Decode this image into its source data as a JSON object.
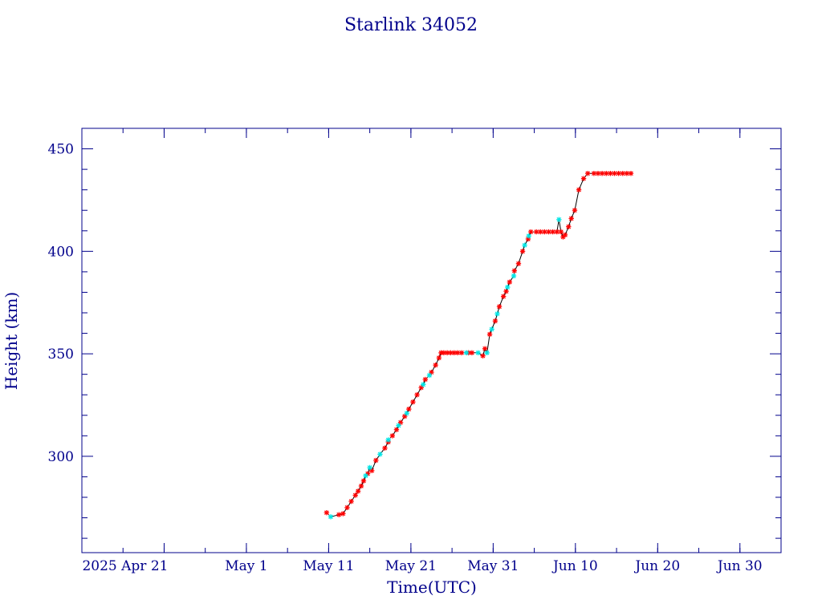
{
  "chart_data": {
    "type": "scatter",
    "title": "Starlink 34052",
    "xlabel": "Time(UTC)",
    "ylabel": "Height (km)",
    "x_tick_labels": [
      "2025 Apr 21",
      "May  1",
      "May 11",
      "May 21",
      "May 31",
      "Jun 10",
      "Jun 20",
      "Jun 30"
    ],
    "x_ticks": [
      "2025-04-21",
      "2025-05-01",
      "2025-05-11",
      "2025-05-21",
      "2025-05-31",
      "2025-06-10",
      "2025-06-20",
      "2025-06-30"
    ],
    "xlim": [
      "2025-04-11",
      "2025-07-05"
    ],
    "y_ticks": [
      300,
      350,
      400,
      450
    ],
    "ylim": [
      253,
      460
    ],
    "grid": false,
    "colors": {
      "axis": "#00008b",
      "text": "#00008b",
      "line": "#000000",
      "marker_primary": "#ff0000",
      "marker_secondary": "#00e5e5"
    },
    "series": [
      {
        "marker": "red-asterisk",
        "points": [
          [
            "2025-05-10 18:00",
            272.5
          ],
          [
            "2025-05-12 06:00",
            271.5
          ],
          [
            "2025-05-12 18:00",
            272
          ],
          [
            "2025-05-13 06:00",
            275
          ],
          [
            "2025-05-13 18:00",
            278
          ],
          [
            "2025-05-14 06:00",
            281
          ],
          [
            "2025-05-14 14:00",
            283
          ],
          [
            "2025-05-14 23:00",
            285.5
          ],
          [
            "2025-05-15 06:00",
            288
          ],
          [
            "2025-05-15 18:00",
            291.5
          ],
          [
            "2025-05-16 06:00",
            293
          ],
          [
            "2025-05-16 18:00",
            298
          ],
          [
            "2025-05-17 20:00",
            304
          ],
          [
            "2025-05-18 06:00",
            307
          ],
          [
            "2025-05-18 18:00",
            310
          ],
          [
            "2025-05-19 06:00",
            313
          ],
          [
            "2025-05-19 18:00",
            316.5
          ],
          [
            "2025-05-20 06:00",
            319.5
          ],
          [
            "2025-05-20 18:00",
            323
          ],
          [
            "2025-05-21 06:00",
            326.5
          ],
          [
            "2025-05-21 18:00",
            330
          ],
          [
            "2025-05-22 06:00",
            333.5
          ],
          [
            "2025-05-22 18:00",
            337.5
          ],
          [
            "2025-05-23 12:00",
            341
          ],
          [
            "2025-05-24 00:00",
            344.5
          ],
          [
            "2025-05-24 10:00",
            348
          ],
          [
            "2025-05-24 16:00",
            350.5
          ],
          [
            "2025-05-25 00:00",
            350.5
          ],
          [
            "2025-05-25 10:00",
            350.5
          ],
          [
            "2025-05-25 20:00",
            350.5
          ],
          [
            "2025-05-26 06:00",
            350.5
          ],
          [
            "2025-05-26 16:00",
            350.5
          ],
          [
            "2025-05-27 04:00",
            350.5
          ],
          [
            "2025-05-28 00:00",
            350.5
          ],
          [
            "2025-05-28 10:00",
            350.5
          ],
          [
            "2025-05-29 18:00",
            349
          ],
          [
            "2025-05-30 00:00",
            352.5
          ],
          [
            "2025-05-30 14:00",
            359.5
          ],
          [
            "2025-05-31 06:00",
            366
          ],
          [
            "2025-05-31 18:00",
            373
          ],
          [
            "2025-06-01 06:00",
            378
          ],
          [
            "2025-06-01 14:00",
            380.5
          ],
          [
            "2025-06-02 00:00",
            385
          ],
          [
            "2025-06-02 14:00",
            390.5
          ],
          [
            "2025-06-03 02:00",
            394
          ],
          [
            "2025-06-03 14:00",
            400
          ],
          [
            "2025-06-04 06:00",
            406
          ],
          [
            "2025-06-04 14:00",
            409.5
          ],
          [
            "2025-06-05 06:00",
            409.5
          ],
          [
            "2025-06-05 18:00",
            409.5
          ],
          [
            "2025-06-06 06:00",
            409.5
          ],
          [
            "2025-06-06 18:00",
            409.5
          ],
          [
            "2025-06-07 06:00",
            409.5
          ],
          [
            "2025-06-07 18:00",
            409.5
          ],
          [
            "2025-06-08 06:00",
            409.5
          ],
          [
            "2025-06-08 12:00",
            407
          ],
          [
            "2025-06-08 18:00",
            408
          ],
          [
            "2025-06-09 04:00",
            412
          ],
          [
            "2025-06-09 12:00",
            416
          ],
          [
            "2025-06-09 22:00",
            420
          ],
          [
            "2025-06-10 10:00",
            430
          ],
          [
            "2025-06-11 00:00",
            435.5
          ],
          [
            "2025-06-11 12:00",
            438
          ],
          [
            "2025-06-12 06:00",
            438
          ],
          [
            "2025-06-12 18:00",
            438
          ],
          [
            "2025-06-13 06:00",
            438
          ],
          [
            "2025-06-13 18:00",
            438
          ],
          [
            "2025-06-14 06:00",
            438
          ],
          [
            "2025-06-14 18:00",
            438
          ],
          [
            "2025-06-15 06:00",
            438
          ],
          [
            "2025-06-15 18:00",
            438
          ],
          [
            "2025-06-16 06:00",
            438
          ],
          [
            "2025-06-16 18:00",
            438
          ]
        ]
      },
      {
        "marker": "cyan-asterisk",
        "points": [
          [
            "2025-05-11 06:00",
            270.5
          ],
          [
            "2025-05-15 12:00",
            290.5
          ],
          [
            "2025-05-16 00:00",
            294.5
          ],
          [
            "2025-05-17 06:00",
            301
          ],
          [
            "2025-05-18 06:00",
            308
          ],
          [
            "2025-05-19 12:00",
            315
          ],
          [
            "2025-05-20 12:00",
            321
          ],
          [
            "2025-05-22 12:00",
            335
          ],
          [
            "2025-05-23 06:00",
            339.5
          ],
          [
            "2025-05-27 18:00",
            350.5
          ],
          [
            "2025-05-29 04:00",
            350.5
          ],
          [
            "2025-05-30 06:00",
            350.5
          ],
          [
            "2025-05-30 20:00",
            362
          ],
          [
            "2025-05-31 12:00",
            369.5
          ],
          [
            "2025-06-01 18:00",
            382.5
          ],
          [
            "2025-06-02 12:00",
            388
          ],
          [
            "2025-06-03 20:00",
            403
          ],
          [
            "2025-06-04 08:00",
            407.5
          ],
          [
            "2025-06-08 00:00",
            415.5
          ]
        ]
      }
    ]
  }
}
